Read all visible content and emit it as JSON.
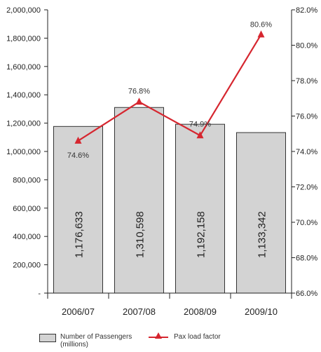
{
  "chart_data": {
    "type": "bar",
    "categories": [
      "2006/07",
      "2007/08",
      "2008/09",
      "2009/10"
    ],
    "series": [
      {
        "name": "Number of Passengers (millions)",
        "type": "bar",
        "axis": "left",
        "values": [
          1176633,
          1310598,
          1192158,
          1133342
        ],
        "labels": [
          "1,176,633",
          "1,310,598",
          "1,192,158",
          "1,133,342"
        ],
        "color": "#d3d3d3"
      },
      {
        "name": "Pax load factor",
        "type": "line",
        "axis": "right",
        "values": [
          74.6,
          76.8,
          74.9,
          80.6
        ],
        "labels": [
          "74.6%",
          "76.8%",
          "74.9%",
          "80.6%"
        ],
        "color": "#d6262f"
      }
    ],
    "y_left": {
      "min": 0,
      "max": 2000000,
      "ticks": [
        0,
        200000,
        400000,
        600000,
        800000,
        1000000,
        1200000,
        1400000,
        1600000,
        1800000,
        2000000
      ],
      "tick_labels": [
        "-",
        "200,000",
        "400,000",
        "600,000",
        "800,000",
        "1,000,000",
        "1,200,000",
        "1,400,000",
        "1,600,000",
        "1,800,000",
        "2,000,000"
      ]
    },
    "y_right": {
      "min": 66.0,
      "max": 82.0,
      "ticks": [
        66,
        68,
        70,
        72,
        74,
        76,
        78,
        80,
        82
      ],
      "tick_labels": [
        "66.0%",
        "68.0%",
        "70.0%",
        "72.0%",
        "74.0%",
        "76.0%",
        "78.0%",
        "80.0%",
        "82.0%"
      ]
    },
    "grid": false,
    "legend_position": "bottom"
  },
  "legend": {
    "bar_label_line1": "Number of Passengers",
    "bar_label_line2": "(millions)",
    "line_label": "Pax load factor"
  }
}
